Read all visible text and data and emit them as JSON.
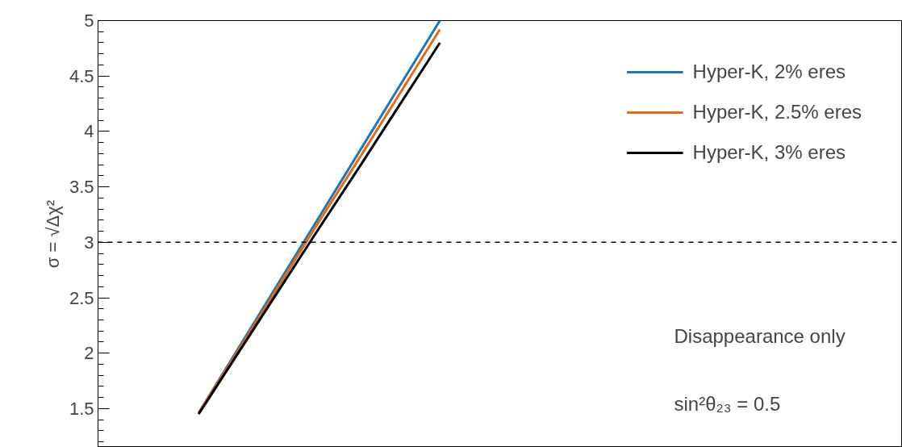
{
  "chart_data": {
    "type": "line",
    "ylabel": "σ = √Δχ²",
    "categories": [
      null,
      null,
      null,
      null,
      null,
      null,
      null,
      null,
      null,
      null,
      null,
      null,
      null,
      null,
      null,
      null,
      null,
      null,
      null,
      null
    ],
    "series": [
      {
        "name": "Hyper-K, 2% eres",
        "color": "#1f77b4",
        "values": [
          null,
          null,
          1.46,
          2.05,
          2.64,
          3.23,
          3.82,
          4.41,
          5.0,
          null,
          null,
          null,
          null,
          null,
          null,
          null,
          null,
          null,
          null,
          null
        ]
      },
      {
        "name": "Hyper-K, 2.5% eres",
        "color": "#e06c1a",
        "values": [
          null,
          null,
          1.46,
          2.03,
          2.61,
          3.19,
          3.76,
          4.34,
          4.92,
          null,
          null,
          null,
          null,
          null,
          null,
          null,
          null,
          null,
          null,
          null
        ]
      },
      {
        "name": "Hyper-K, 3% eres",
        "color": "#000000",
        "values": [
          null,
          null,
          1.45,
          2.01,
          2.57,
          3.13,
          3.68,
          4.24,
          4.8,
          null,
          null,
          null,
          null,
          null,
          null,
          null,
          null,
          null,
          null,
          null
        ]
      }
    ],
    "ylim": [
      1.15,
      5
    ],
    "yticks": [
      1.5,
      2,
      2.5,
      3,
      3.5,
      4,
      4.5,
      5
    ],
    "ref_lines": [
      {
        "axis": "y",
        "value": 3,
        "color": "#000000",
        "line_style": "dashed"
      }
    ],
    "annotations": [
      "Disappearance only",
      "sin²θ₂₃ = 0.5"
    ],
    "legend": "top right",
    "grid": false,
    "tick_labels": "y",
    "line_style": "solid",
    "marker": "none"
  }
}
